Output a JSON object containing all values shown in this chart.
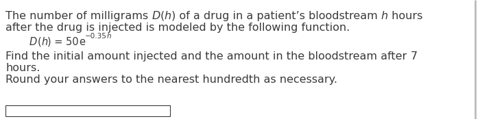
{
  "bg_color": "#ffffff",
  "text_color": "#3a3a3a",
  "font_family": "DejaVu Sans",
  "font_size_main": 11.5,
  "font_size_formula": 10.5,
  "font_size_exp": 7.5,
  "right_bar_color": "#aaaaaa",
  "box_color": "#3a3a3a",
  "line1_parts": [
    {
      "text": "The number of milligrams ",
      "style": "normal"
    },
    {
      "text": "D",
      "style": "italic"
    },
    {
      "text": "(",
      "style": "normal"
    },
    {
      "text": "h",
      "style": "italic"
    },
    {
      "text": ") of a drug in a patient’s bloodstream ",
      "style": "normal"
    },
    {
      "text": "h",
      "style": "italic"
    },
    {
      "text": " hours",
      "style": "normal"
    }
  ],
  "line2": "after the drug is injected is modeled by the following function.",
  "formula_parts": [
    {
      "text": "D",
      "style": "italic",
      "size": "formula"
    },
    {
      "text": "(",
      "style": "normal",
      "size": "formula"
    },
    {
      "text": "h",
      "style": "italic",
      "size": "formula"
    },
    {
      "text": ") = 50",
      "style": "normal",
      "size": "formula"
    },
    {
      "text": "e",
      "style": "normal",
      "size": "formula"
    },
    {
      "text": "−0.35",
      "style": "normal",
      "size": "exp",
      "super": true
    },
    {
      "text": "h",
      "style": "italic",
      "size": "exp",
      "super": true
    }
  ],
  "line4_parts": [
    {
      "text": "Find the initial amount injected and the amount in the bloodstream after ",
      "style": "normal"
    },
    {
      "text": "7",
      "style": "normal"
    }
  ],
  "line5": "hours.",
  "line6": "Round your answers to the nearest hundredth as necessary."
}
